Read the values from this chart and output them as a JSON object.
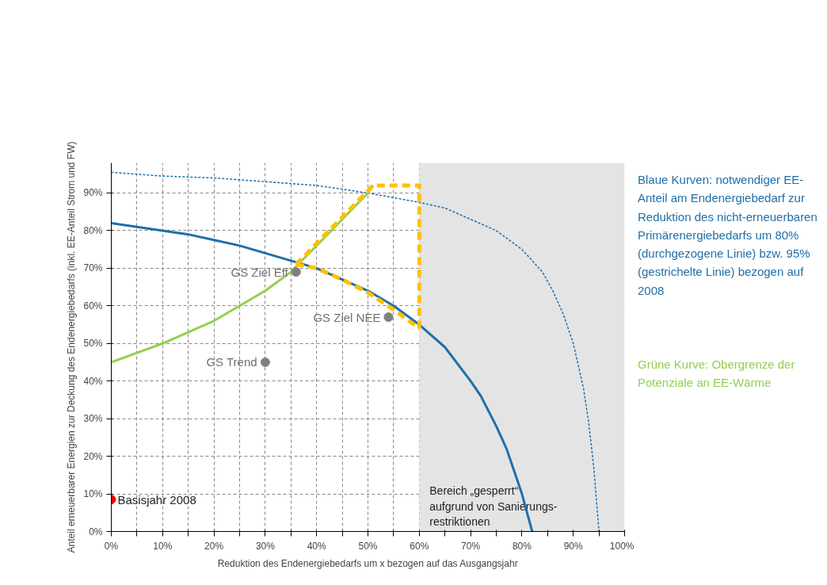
{
  "chart_data": {
    "type": "line",
    "xlabel": "Reduktion des Endenergiebedarfs um x bezogen auf das Ausgangsjahr",
    "ylabel": "Anteil erneuerbarer Energien zur Deckung des Endenergiebedarfs (inkl. EE-Anteil Strom und FW)",
    "xlim": [
      0,
      100
    ],
    "ylim": [
      0,
      98
    ],
    "xticks": [
      {
        "value": 0,
        "label": "0%"
      },
      {
        "value": 5,
        "label": null
      },
      {
        "value": 10,
        "label": "10%"
      },
      {
        "value": 15,
        "label": null
      },
      {
        "value": 20,
        "label": "20%"
      },
      {
        "value": 25,
        "label": null
      },
      {
        "value": 30,
        "label": "30%"
      },
      {
        "value": 35,
        "label": null
      },
      {
        "value": 40,
        "label": "40%"
      },
      {
        "value": 45,
        "label": null
      },
      {
        "value": 50,
        "label": "50%"
      },
      {
        "value": 55,
        "label": null
      },
      {
        "value": 60,
        "label": "60%"
      },
      {
        "value": 65,
        "label": null
      },
      {
        "value": 70,
        "label": "70%"
      },
      {
        "value": 75,
        "label": null
      },
      {
        "value": 80,
        "label": "80%"
      },
      {
        "value": 85,
        "label": null
      },
      {
        "value": 90,
        "label": "90%"
      },
      {
        "value": 95,
        "label": null
      },
      {
        "value": 100,
        "label": "100%"
      }
    ],
    "yticks": [
      {
        "value": 0,
        "label": "0%"
      },
      {
        "value": 10,
        "label": "10%"
      },
      {
        "value": 20,
        "label": "20%"
      },
      {
        "value": 30,
        "label": "30%"
      },
      {
        "value": 40,
        "label": "40%"
      },
      {
        "value": 50,
        "label": "50%"
      },
      {
        "value": 60,
        "label": "60%"
      },
      {
        "value": 70,
        "label": "70%"
      },
      {
        "value": 80,
        "label": "80%"
      },
      {
        "value": 90,
        "label": "90%"
      }
    ],
    "grid": true,
    "bands": [
      {
        "axis": "x",
        "from": 60,
        "to": 100,
        "label": "Bereich „gesperrt“\naufgrund von Sanierungs-\nrestriktionen",
        "color": "#e4e4e4"
      }
    ],
    "series": [
      {
        "color": "#1f6fa8",
        "line_style": "solid",
        "x": [
          0,
          5,
          10,
          15,
          20,
          25,
          30,
          35,
          40,
          45,
          50,
          55,
          60,
          65,
          70,
          72,
          75,
          77,
          78,
          80,
          81,
          82
        ],
        "values": [
          82,
          81,
          80,
          79,
          77.5,
          76,
          74,
          72,
          70,
          67,
          64,
          60,
          55,
          49,
          40,
          36,
          28,
          22,
          18,
          10,
          5,
          0
        ]
      },
      {
        "color": "#1f6fa8",
        "line_style": "dotted",
        "x": [
          0,
          10,
          20,
          30,
          40,
          50,
          60,
          65,
          70,
          75,
          80,
          82,
          84,
          86,
          88,
          90,
          91,
          92,
          93,
          94,
          95
        ],
        "values": [
          95.5,
          94.5,
          94,
          93,
          92,
          90,
          87.5,
          86,
          83,
          80,
          75,
          72,
          69,
          64,
          58,
          50,
          44,
          38,
          29,
          17,
          0
        ]
      },
      {
        "color": "#92d050",
        "line_style": "solid",
        "x": [
          0,
          5,
          10,
          15,
          20,
          25,
          30,
          35,
          36,
          40,
          45,
          50,
          51
        ],
        "values": [
          45,
          47.5,
          50,
          53,
          56,
          60,
          64,
          69,
          70.5,
          76,
          83,
          90,
          92
        ]
      },
      {
        "color": "#ffc000",
        "line_style": "dashed",
        "x": [
          36,
          51,
          60,
          60
        ],
        "values": [
          71,
          92,
          92,
          54
        ]
      },
      {
        "color": "#ffc000",
        "line_style": "dashed",
        "x": [
          36,
          40,
          45,
          50,
          55,
          60
        ],
        "values": [
          71,
          70,
          67,
          63.5,
          59,
          54
        ]
      },
      {
        "type": "scatter",
        "name": "GS Ziel Eff",
        "color": "#808080",
        "x": [
          36
        ],
        "values": [
          69
        ]
      },
      {
        "type": "scatter",
        "name": "GS Ziel NEE",
        "color": "#808080",
        "x": [
          54
        ],
        "values": [
          57
        ]
      },
      {
        "type": "scatter",
        "name": "GS Trend",
        "color": "#808080",
        "x": [
          30
        ],
        "values": [
          45
        ]
      },
      {
        "type": "scatter",
        "name": "Basisjahr 2008",
        "color": "#ff0000",
        "x": [
          0
        ],
        "values": [
          8.5
        ]
      }
    ],
    "annotations": [
      "Blaue Kurven: notwendiger EE-Anteil am Endenergiebedarf zur Reduktion des nicht-erneuerbaren Primärenergiebedarfs um 80% (durchgezogene Linie) bzw. 95% (gestrichelte Linie) bezogen auf 2008",
      "Grüne Kurve: Obergrenze der Potenziale an EE-Wärme"
    ]
  }
}
